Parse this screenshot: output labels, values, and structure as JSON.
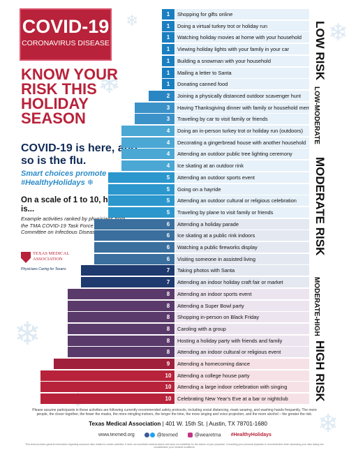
{
  "header": {
    "title": "COVID-19",
    "subtitle": "CORONAVIRUS DISEASE",
    "headline": "KNOW YOUR RISK THIS HOLIDAY SEASON",
    "flu_line": "COVID-19 is here, and so is the flu.",
    "smart_line": "Smart choices promote #HealthyHolidays",
    "scale_question": "On a scale of 1 to 10, how risky is...",
    "ranking_note": "Example activities ranked by physicians from the TMA COVID-19 Task Force and the TMA Committee on Infectious Diseases."
  },
  "logo": {
    "name": "TEXAS MEDICAL ASSOCIATION",
    "tagline": "Physicians Caring for Texans"
  },
  "activities": [
    {
      "score": "1",
      "label": "Shopping for gifts online"
    },
    {
      "score": "1",
      "label": "Doing a virtual turkey trot or holiday run"
    },
    {
      "score": "1",
      "label": "Watching holiday movies at home with your household"
    },
    {
      "score": "1",
      "label": "Viewing holiday lights with your family in your car"
    },
    {
      "score": "1",
      "label": "Building a snowman with your household"
    },
    {
      "score": "1",
      "label": "Mailing a letter to Santa"
    },
    {
      "score": "1",
      "label": "Donating canned food"
    },
    {
      "score": "2",
      "label": "Joining a physically distanced outdoor scavenger hunt"
    },
    {
      "score": "3",
      "label": "Having Thanksgiving dinner with family or household members"
    },
    {
      "score": "3",
      "label": "Traveling by car to visit family or friends"
    },
    {
      "score": "4",
      "label": "Doing an in-person turkey trot or holiday run (outdoors)"
    },
    {
      "score": "4",
      "label": "Decorating a gingerbread house with another household"
    },
    {
      "score": "4",
      "label": "Attending an outdoor public tree lighting ceremony"
    },
    {
      "score": "4",
      "label": "Ice skating at an outdoor rink"
    },
    {
      "score": "5",
      "label": "Attending an outdoor sports event"
    },
    {
      "score": "5",
      "label": "Going on a hayride"
    },
    {
      "score": "5",
      "label": "Attending an outdoor cultural or religious celebration"
    },
    {
      "score": "5",
      "label": "Traveling by plane to visit family or friends"
    },
    {
      "score": "6",
      "label": "Attending a holiday parade"
    },
    {
      "score": "6",
      "label": "Ice skating at a public rink indoors"
    },
    {
      "score": "6",
      "label": "Watching a public fireworks display"
    },
    {
      "score": "6",
      "label": "Visiting someone in assisted living"
    },
    {
      "score": "7",
      "label": "Taking photos with Santa"
    },
    {
      "score": "7",
      "label": "Attending an indoor holiday craft fair or market"
    },
    {
      "score": "8",
      "label": "Attending an indoor sports event"
    },
    {
      "score": "8",
      "label": "Attending a Super Bowl party"
    },
    {
      "score": "8",
      "label": "Shopping in-person on Black Friday"
    },
    {
      "score": "8",
      "label": "Caroling with a group"
    },
    {
      "score": "8",
      "label": "Hosting a holiday party with friends and family"
    },
    {
      "score": "8",
      "label": "Attending an indoor cultural or religious event"
    },
    {
      "score": "9",
      "label": "Attending a homecoming dance"
    },
    {
      "score": "10",
      "label": "Attending a college house party"
    },
    {
      "score": "10",
      "label": "Attending a large indoor celebration with singing"
    },
    {
      "score": "10",
      "label": "Celebrating New Year's Eve at a bar or nightclub"
    }
  ],
  "risk_levels": {
    "low": "LOW RISK",
    "low_moderate": "LOW-MODERATE",
    "moderate": "MODERATE RISK",
    "moderate_high": "MODERATE-HIGH",
    "high": "HIGH RISK"
  },
  "colors": {
    "score_1": "#1a7fc1",
    "score_2": "#2a86c3",
    "score_3": "#3b92c9",
    "score_4": "#4ba7d4",
    "score_5": "#2b97cd",
    "score_6": "#3a6f9e",
    "score_7": "#1e3a6e",
    "score_8": "#5a3a6a",
    "score_9": "#a0203c",
    "score_10": "#b8223a"
  },
  "footer": {
    "disclaimer": "Please assume participants in these activities are following currently recommended safety protocols, including social distancing, mask wearing, and washing hands frequently. The more people, the closer together, the fewer the masks, the more mingling indoors, the longer the time, the more singing and voice projection, and the more alcohol – the greater the risk.",
    "org_name": "Texas Medical Association",
    "address": "| 401 W. 15th St. | Austin, TX 78701-1680",
    "website": "www.texmed.org",
    "social_handle": "@texmed",
    "instagram": "@wearetma",
    "hashtag": "#HealthyHolidays",
    "fine_print": "This chart provides general information regarding exposure risks related to certain activities. It does not constitute medical advice and does not substitute for the advice of your physician. Consulting your personal physician is recommended when assessing your risks taking into consideration your medical conditions."
  }
}
